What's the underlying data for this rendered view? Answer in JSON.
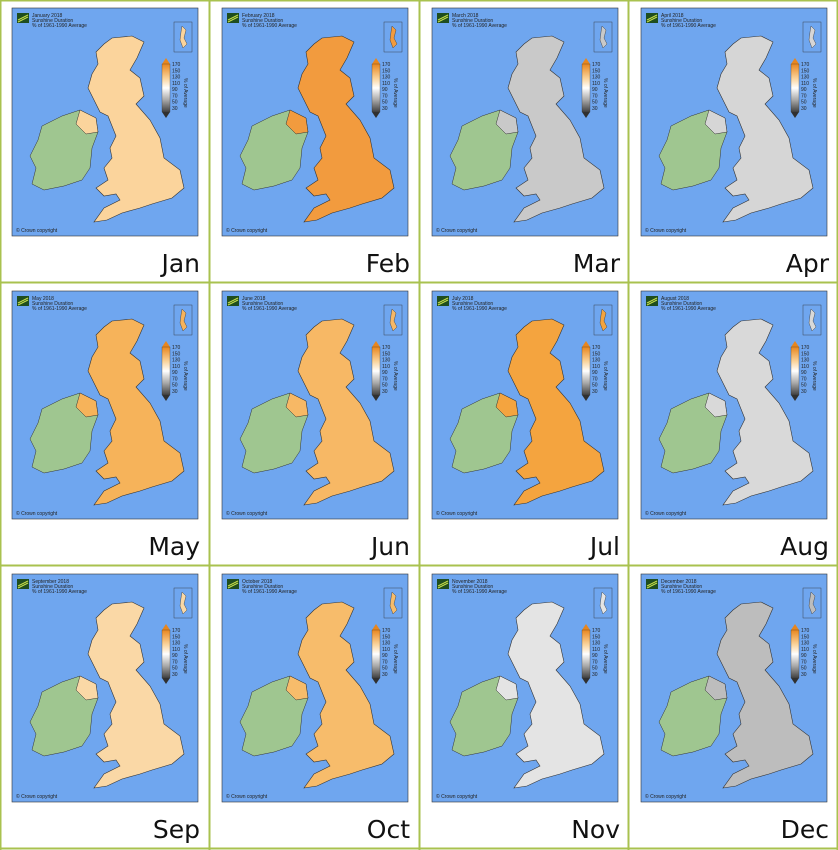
{
  "panels": [
    {
      "month": "Jan",
      "map_title": "January 2018",
      "fill": "#fbd49c"
    },
    {
      "month": "Feb",
      "map_title": "February 2018",
      "fill": "#f29b3e"
    },
    {
      "month": "Mar",
      "map_title": "March 2018",
      "fill": "#c9c9c9"
    },
    {
      "month": "Apr",
      "map_title": "April 2018",
      "fill": "#d6d6d6"
    },
    {
      "month": "May",
      "map_title": "May 2018",
      "fill": "#f6b35a"
    },
    {
      "month": "Jun",
      "map_title": "June 2018",
      "fill": "#f7b865"
    },
    {
      "month": "Jul",
      "map_title": "July 2018",
      "fill": "#f4a43f"
    },
    {
      "month": "Aug",
      "map_title": "August 2018",
      "fill": "#d9d9d9"
    },
    {
      "month": "Sep",
      "map_title": "September 2018",
      "fill": "#fad8a6"
    },
    {
      "month": "Oct",
      "map_title": "October 2018",
      "fill": "#f7bc6b"
    },
    {
      "month": "Nov",
      "map_title": "November 2018",
      "fill": "#e4e4e4"
    },
    {
      "month": "Dec",
      "map_title": "December 2018",
      "fill": "#bdbdbd"
    }
  ],
  "map_subtitle": "Sunshine Duration",
  "map_subtitle2": "% of 1961-1990 Average",
  "legend_labels": [
    "170",
    "150",
    "130",
    "110",
    "90",
    "70",
    "50",
    "30"
  ],
  "legend_axis": "% of Average",
  "copyright": "© Crown copyright"
}
